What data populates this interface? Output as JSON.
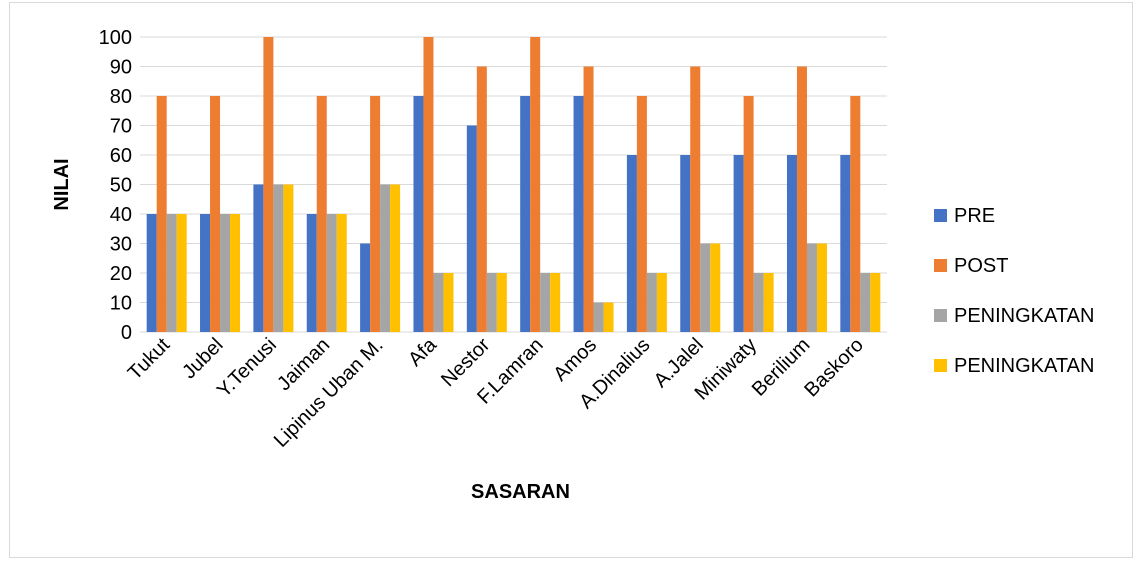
{
  "chart_data": {
    "type": "bar",
    "title": "",
    "xlabel": "SASARAN",
    "ylabel": "NILAI",
    "ylim": [
      0,
      100
    ],
    "ytick_step": 10,
    "grid": true,
    "legend_position": "right",
    "categories": [
      "Tukut",
      "Jubel",
      "Y.Tenusi",
      "Jaiman",
      "Lipinus Uban M.",
      "Afa",
      "Nestor",
      "F.Lamran",
      "Amos",
      "A.Dinalius",
      "A.Jalel",
      "Miniwaty",
      "Berilium",
      "Baskoro"
    ],
    "series": [
      {
        "name": "PRE",
        "color": "#4472c4",
        "values": [
          40,
          40,
          50,
          40,
          30,
          80,
          70,
          80,
          80,
          60,
          60,
          60,
          60,
          60
        ]
      },
      {
        "name": "POST",
        "color": "#ed7d31",
        "values": [
          80,
          80,
          100,
          80,
          80,
          100,
          90,
          100,
          90,
          80,
          90,
          80,
          90,
          80
        ]
      },
      {
        "name": "PENINGKATAN",
        "color": "#a5a5a5",
        "values": [
          40,
          40,
          50,
          40,
          50,
          20,
          20,
          20,
          10,
          20,
          30,
          20,
          30,
          20
        ]
      },
      {
        "name": "PENINGKATAN",
        "color": "#ffc000",
        "values": [
          40,
          40,
          50,
          40,
          50,
          20,
          20,
          20,
          10,
          20,
          30,
          20,
          30,
          20
        ]
      }
    ]
  }
}
